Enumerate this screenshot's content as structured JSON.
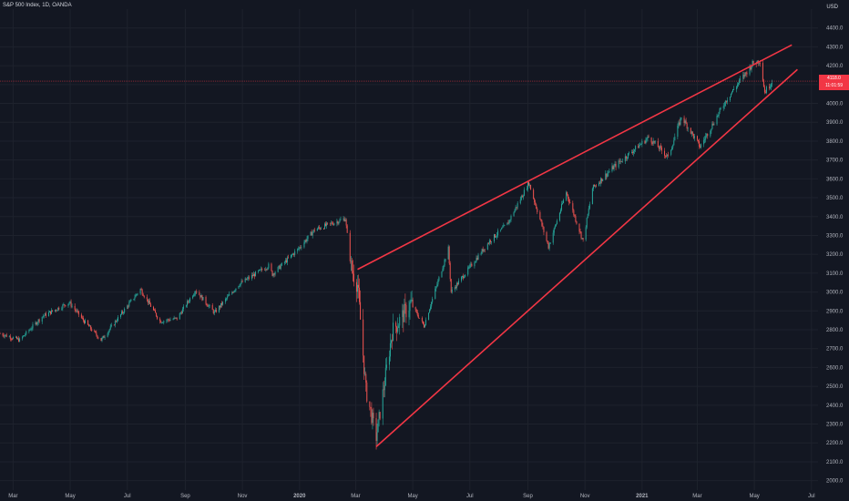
{
  "header": {
    "symbol_line": "S&P 500 Index, 1D, OANDA"
  },
  "currency": "USD",
  "price_badge": {
    "price": "4118.0",
    "countdown": "11:01:59"
  },
  "colors": {
    "background": "#131722",
    "grid": "#1e222d",
    "up": "#26a69a",
    "down": "#ef5350",
    "trendline": "#f23645",
    "axis_text": "#b2b5be"
  },
  "chart_data": {
    "type": "candlestick",
    "title": "S&P 500 Index, 1D, OANDA",
    "y_unit": "USD",
    "ylim": [
      1950,
      4500
    ],
    "grid": true,
    "y_ticks": [
      2000,
      2100,
      2200,
      2300,
      2400,
      2500,
      2600,
      2700,
      2800,
      2900,
      3000,
      3100,
      3200,
      3300,
      3400,
      3500,
      3600,
      3700,
      3800,
      3900,
      4000,
      4100,
      4200,
      4300,
      4400
    ],
    "x_ticks": [
      "Mar",
      "May",
      "Jul",
      "Sep",
      "Nov",
      "2020",
      "Mar",
      "May",
      "Jul",
      "Sep",
      "Nov",
      "2021",
      "Mar",
      "May",
      "Jul"
    ],
    "x_tick_dates": [
      "2019-03-01",
      "2019-05-01",
      "2019-07-01",
      "2019-09-01",
      "2019-11-01",
      "2020-01-01",
      "2020-03-01",
      "2020-05-01",
      "2020-07-01",
      "2020-09-01",
      "2020-11-01",
      "2021-01-01",
      "2021-03-01",
      "2021-05-01",
      "2021-07-01"
    ],
    "xlim": [
      "2019-02-15",
      "2021-07-08"
    ],
    "close_series": [
      {
        "date": "2019-02-15",
        "close": 2780
      },
      {
        "date": "2019-03-08",
        "close": 2745
      },
      {
        "date": "2019-04-01",
        "close": 2870
      },
      {
        "date": "2019-04-30",
        "close": 2945
      },
      {
        "date": "2019-05-15",
        "close": 2850
      },
      {
        "date": "2019-06-03",
        "close": 2745
      },
      {
        "date": "2019-07-15",
        "close": 3015
      },
      {
        "date": "2019-08-05",
        "close": 2845
      },
      {
        "date": "2019-08-23",
        "close": 2860
      },
      {
        "date": "2019-09-12",
        "close": 3010
      },
      {
        "date": "2019-10-02",
        "close": 2890
      },
      {
        "date": "2019-10-28",
        "close": 3040
      },
      {
        "date": "2019-11-29",
        "close": 3140
      },
      {
        "date": "2019-12-03",
        "close": 3095
      },
      {
        "date": "2019-12-31",
        "close": 3230
      },
      {
        "date": "2020-01-17",
        "close": 3330
      },
      {
        "date": "2020-02-19",
        "close": 3390
      },
      {
        "date": "2020-02-25",
        "close": 3130
      },
      {
        "date": "2020-03-03",
        "close": 3040
      },
      {
        "date": "2020-03-12",
        "close": 2480
      },
      {
        "date": "2020-03-23",
        "close": 2230
      },
      {
        "date": "2020-04-09",
        "close": 2790
      },
      {
        "date": "2020-04-29",
        "close": 2940
      },
      {
        "date": "2020-05-13",
        "close": 2820
      },
      {
        "date": "2020-06-08",
        "close": 3230
      },
      {
        "date": "2020-06-11",
        "close": 3000
      },
      {
        "date": "2020-07-22",
        "close": 3270
      },
      {
        "date": "2020-08-10",
        "close": 3360
      },
      {
        "date": "2020-09-02",
        "close": 3580
      },
      {
        "date": "2020-09-23",
        "close": 3240
      },
      {
        "date": "2020-10-12",
        "close": 3530
      },
      {
        "date": "2020-10-30",
        "close": 3270
      },
      {
        "date": "2020-11-09",
        "close": 3550
      },
      {
        "date": "2020-12-01",
        "close": 3660
      },
      {
        "date": "2021-01-08",
        "close": 3820
      },
      {
        "date": "2021-01-29",
        "close": 3715
      },
      {
        "date": "2021-02-12",
        "close": 3930
      },
      {
        "date": "2021-03-04",
        "close": 3770
      },
      {
        "date": "2021-04-01",
        "close": 4020
      },
      {
        "date": "2021-04-29",
        "close": 4210
      },
      {
        "date": "2021-05-07",
        "close": 4230
      },
      {
        "date": "2021-05-12",
        "close": 4060
      },
      {
        "date": "2021-05-20",
        "close": 4118
      }
    ],
    "annotations": [
      {
        "type": "trendline",
        "name": "upper-wedge-line",
        "from": {
          "date": "2020-03-03",
          "value": 3120
        },
        "to": {
          "date": "2021-06-10",
          "value": 4310
        }
      },
      {
        "type": "trendline",
        "name": "lower-wedge-line",
        "from": {
          "date": "2020-03-23",
          "value": 2180
        },
        "to": {
          "date": "2021-06-16",
          "value": 4180
        }
      },
      {
        "type": "horizontal_line",
        "name": "last-price-line",
        "value": 4118
      }
    ]
  }
}
